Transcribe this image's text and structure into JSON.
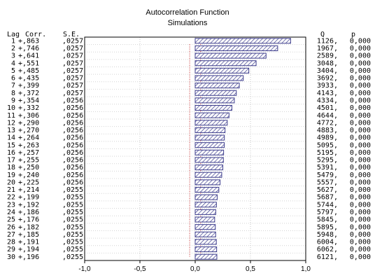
{
  "chart_data": {
    "type": "bar",
    "orientation": "horizontal",
    "title": "Autocorrelation Function",
    "subtitle": "Simulations",
    "headers": {
      "lag": "Lag",
      "corr": "Corr.",
      "se": "S.E.",
      "q": "Q",
      "p": "p"
    },
    "xlim": [
      -1.0,
      1.0
    ],
    "xticks": [
      -1.0,
      -0.5,
      0.0,
      0.5,
      1.0
    ],
    "xtick_labels": [
      "-1,0",
      "-0,5",
      "0,0",
      "0,5",
      "1,0"
    ],
    "grid": true,
    "confidence_limit": 0.05,
    "bar_color": "#3c3c8c",
    "rows": [
      {
        "lag": "1",
        "corr": 0.863,
        "corr_label": "+,863",
        "se": ",0257",
        "q": "1126,",
        "p": "0,000"
      },
      {
        "lag": "2",
        "corr": 0.746,
        "corr_label": "+,746",
        "se": ",0257",
        "q": "1967,",
        "p": "0,000"
      },
      {
        "lag": "3",
        "corr": 0.641,
        "corr_label": "+,641",
        "se": ",0257",
        "q": "2589,",
        "p": "0,000"
      },
      {
        "lag": "4",
        "corr": 0.551,
        "corr_label": "+,551",
        "se": ",0257",
        "q": "3048,",
        "p": "0,000"
      },
      {
        "lag": "5",
        "corr": 0.485,
        "corr_label": "+,485",
        "se": ",0257",
        "q": "3404,",
        "p": "0,000"
      },
      {
        "lag": "6",
        "corr": 0.435,
        "corr_label": "+,435",
        "se": ",0257",
        "q": "3692,",
        "p": "0,000"
      },
      {
        "lag": "7",
        "corr": 0.399,
        "corr_label": "+,399",
        "se": ",0257",
        "q": "3933,",
        "p": "0,000"
      },
      {
        "lag": "8",
        "corr": 0.372,
        "corr_label": "+,372",
        "se": ",0257",
        "q": "4143,",
        "p": "0,000"
      },
      {
        "lag": "9",
        "corr": 0.354,
        "corr_label": "+,354",
        "se": ",0256",
        "q": "4334,",
        "p": "0,000"
      },
      {
        "lag": "10",
        "corr": 0.332,
        "corr_label": "+,332",
        "se": ",0256",
        "q": "4501,",
        "p": "0,000"
      },
      {
        "lag": "11",
        "corr": 0.306,
        "corr_label": "+,306",
        "se": ",0256",
        "q": "4644,",
        "p": "0,000"
      },
      {
        "lag": "12",
        "corr": 0.29,
        "corr_label": "+,290",
        "se": ",0256",
        "q": "4772,",
        "p": "0,000"
      },
      {
        "lag": "13",
        "corr": 0.27,
        "corr_label": "+,270",
        "se": ",0256",
        "q": "4883,",
        "p": "0,000"
      },
      {
        "lag": "14",
        "corr": 0.264,
        "corr_label": "+,264",
        "se": ",0256",
        "q": "4989,",
        "p": "0,000"
      },
      {
        "lag": "15",
        "corr": 0.263,
        "corr_label": "+,263",
        "se": ",0256",
        "q": "5095,",
        "p": "0,000"
      },
      {
        "lag": "16",
        "corr": 0.257,
        "corr_label": "+,257",
        "se": ",0256",
        "q": "5195,",
        "p": "0,000"
      },
      {
        "lag": "17",
        "corr": 0.255,
        "corr_label": "+,255",
        "se": ",0256",
        "q": "5295,",
        "p": "0,000"
      },
      {
        "lag": "18",
        "corr": 0.25,
        "corr_label": "+,250",
        "se": ",0256",
        "q": "5391,",
        "p": "0,000"
      },
      {
        "lag": "19",
        "corr": 0.24,
        "corr_label": "+,240",
        "se": ",0256",
        "q": "5479,",
        "p": "0,000"
      },
      {
        "lag": "20",
        "corr": 0.225,
        "corr_label": "+,225",
        "se": ",0256",
        "q": "5557,",
        "p": "0,000"
      },
      {
        "lag": "21",
        "corr": 0.214,
        "corr_label": "+,214",
        "se": ",0255",
        "q": "5627,",
        "p": "0,000"
      },
      {
        "lag": "22",
        "corr": 0.199,
        "corr_label": "+,199",
        "se": ",0255",
        "q": "5687,",
        "p": "0,000"
      },
      {
        "lag": "23",
        "corr": 0.192,
        "corr_label": "+,192",
        "se": ",0255",
        "q": "5744,",
        "p": "0,000"
      },
      {
        "lag": "24",
        "corr": 0.186,
        "corr_label": "+,186",
        "se": ",0255",
        "q": "5797,",
        "p": "0,000"
      },
      {
        "lag": "25",
        "corr": 0.176,
        "corr_label": "+,176",
        "se": ",0255",
        "q": "5845,",
        "p": "0,000"
      },
      {
        "lag": "26",
        "corr": 0.182,
        "corr_label": "+,182",
        "se": ",0255",
        "q": "5895,",
        "p": "0,000"
      },
      {
        "lag": "27",
        "corr": 0.185,
        "corr_label": "+,185",
        "se": ",0255",
        "q": "5948,",
        "p": "0,000"
      },
      {
        "lag": "28",
        "corr": 0.191,
        "corr_label": "+,191",
        "se": ",0255",
        "q": "6004,",
        "p": "0,000"
      },
      {
        "lag": "29",
        "corr": 0.194,
        "corr_label": "+,194",
        "se": ",0255",
        "q": "6062,",
        "p": "0,000"
      },
      {
        "lag": "30",
        "corr": 0.196,
        "corr_label": "+,196",
        "se": ",0255",
        "q": "6121,",
        "p": "0,000"
      }
    ]
  }
}
